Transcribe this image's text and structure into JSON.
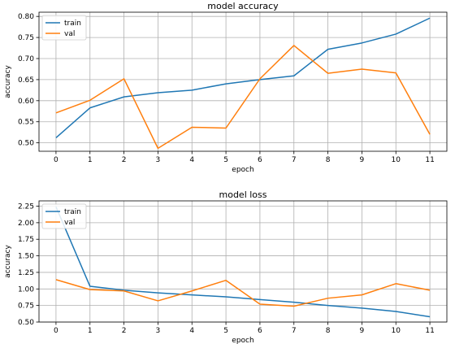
{
  "colors": {
    "train": "#1f77b4",
    "val": "#ff7f0e"
  },
  "chart_data": [
    {
      "type": "line",
      "title": "model accuracy",
      "xlabel": "epoch",
      "ylabel": "accuracy",
      "x": [
        0,
        1,
        2,
        3,
        4,
        5,
        6,
        7,
        8,
        9,
        10,
        11
      ],
      "xlim": [
        -0.5,
        11.5
      ],
      "ylim": [
        0.48,
        0.81
      ],
      "xticks": [
        0,
        1,
        2,
        3,
        4,
        5,
        6,
        7,
        8,
        9,
        10,
        11
      ],
      "yticks": [
        0.5,
        0.55,
        0.6,
        0.65,
        0.7,
        0.75,
        0.8
      ],
      "ytick_labels": [
        "0.50",
        "0.55",
        "0.60",
        "0.65",
        "0.70",
        "0.75",
        "0.80"
      ],
      "grid": true,
      "legend_position": "top-left",
      "series": [
        {
          "name": "train",
          "values": [
            0.512,
            0.583,
            0.609,
            0.619,
            0.625,
            0.64,
            0.65,
            0.659,
            0.722,
            0.737,
            0.758,
            0.796
          ]
        },
        {
          "name": "val",
          "values": [
            0.571,
            0.601,
            0.652,
            0.487,
            0.537,
            0.535,
            0.652,
            0.731,
            0.665,
            0.675,
            0.666,
            0.52
          ]
        }
      ]
    },
    {
      "type": "line",
      "title": "model loss",
      "xlabel": "epoch",
      "ylabel": "accuracy",
      "x": [
        0,
        1,
        2,
        3,
        4,
        5,
        6,
        7,
        8,
        9,
        10,
        11
      ],
      "xlim": [
        -0.5,
        11.5
      ],
      "ylim": [
        0.5,
        2.33
      ],
      "xticks": [
        0,
        1,
        2,
        3,
        4,
        5,
        6,
        7,
        8,
        9,
        10,
        11
      ],
      "yticks": [
        0.5,
        0.75,
        1.0,
        1.25,
        1.5,
        1.75,
        2.0,
        2.25
      ],
      "ytick_labels": [
        "0.50",
        "0.75",
        "1.00",
        "1.25",
        "1.50",
        "1.75",
        "2.00",
        "2.25"
      ],
      "grid": true,
      "legend_position": "top-left",
      "series": [
        {
          "name": "train",
          "values": [
            2.24,
            1.04,
            0.98,
            0.94,
            0.91,
            0.88,
            0.84,
            0.8,
            0.75,
            0.71,
            0.66,
            0.58
          ]
        },
        {
          "name": "val",
          "values": [
            1.14,
            0.99,
            0.97,
            0.82,
            0.97,
            1.13,
            0.77,
            0.74,
            0.86,
            0.91,
            1.08,
            0.98
          ]
        }
      ]
    }
  ]
}
